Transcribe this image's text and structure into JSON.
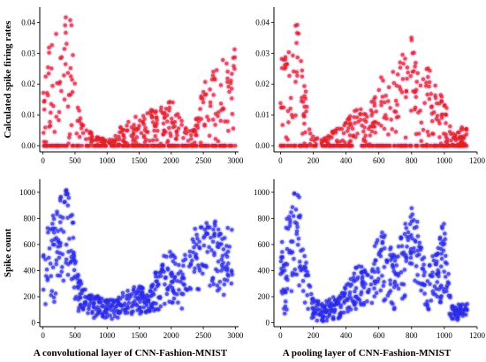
{
  "colors": {
    "red": "#e02020",
    "red_halo": "#f4b8e8",
    "blue": "#2a2ae8",
    "blue_halo": "#b9b9f5"
  },
  "chart_data": [
    {
      "type": "scatter",
      "panel": "top-left",
      "xlabel": "",
      "ylabel": "Calculated spike firing rates",
      "xlim": [
        -50,
        3050
      ],
      "ylim": [
        -0.002,
        0.045
      ],
      "xticks": [
        "0",
        "500",
        "1000",
        "1500",
        "2000",
        "2500",
        "3000"
      ],
      "yticks": [
        "0.00",
        "0.01",
        "0.02",
        "0.03",
        "0.04"
      ],
      "series_color": "red",
      "envelope_x": [
        0,
        100,
        200,
        300,
        400,
        450,
        500,
        600,
        800,
        1000,
        1100,
        1200,
        1400,
        1600,
        1800,
        2000,
        2150,
        2300,
        2400,
        2500,
        2600,
        2700,
        2750,
        2800,
        2900,
        3000
      ],
      "envelope_y": [
        0.03,
        0.034,
        0.038,
        0.041,
        0.044,
        0.04,
        0.02,
        0.008,
        0.003,
        0.002,
        0.002,
        0.006,
        0.009,
        0.012,
        0.013,
        0.016,
        0.01,
        0.004,
        0.01,
        0.02,
        0.025,
        0.028,
        0.027,
        0.03,
        0.025,
        0.033
      ]
    },
    {
      "type": "scatter",
      "panel": "top-right",
      "xlabel": "",
      "ylabel": "",
      "xlim": [
        -40,
        1200
      ],
      "ylim": [
        -0.002,
        0.045
      ],
      "xticks": [
        "0",
        "200",
        "400",
        "600",
        "800",
        "1000",
        "1200"
      ],
      "yticks": [
        "0.00",
        "0.01",
        "0.02",
        "0.03",
        "0.04"
      ],
      "series_color": "red",
      "envelope_x": [
        0,
        50,
        100,
        130,
        180,
        250,
        300,
        400,
        480,
        530,
        600,
        680,
        750,
        800,
        850,
        900,
        950,
        1000,
        1050,
        1100,
        1140
      ],
      "envelope_y": [
        0.028,
        0.033,
        0.042,
        0.03,
        0.005,
        0.002,
        0.004,
        0.008,
        0.013,
        0.01,
        0.022,
        0.025,
        0.03,
        0.04,
        0.02,
        0.026,
        0.02,
        0.016,
        0.004,
        0.006,
        0.007
      ]
    },
    {
      "type": "scatter",
      "panel": "bottom-left",
      "xlabel": "A convolutional layer of CNN-Fashion-MNIST",
      "ylabel": "Spike count",
      "xlim": [
        -50,
        3050
      ],
      "ylim": [
        -30,
        1100
      ],
      "xticks": [
        "0",
        "500",
        "1000",
        "1500",
        "2000",
        "2500",
        "3000"
      ],
      "yticks": [
        "0",
        "200",
        "400",
        "600",
        "800",
        "1000"
      ],
      "series_color": "blue",
      "envelope_x": [
        0,
        100,
        200,
        300,
        400,
        450,
        550,
        700,
        900,
        1100,
        1300,
        1500,
        1650,
        1800,
        2000,
        2150,
        2300,
        2500,
        2700,
        2800,
        2950
      ],
      "envelope_y": [
        700,
        800,
        900,
        1000,
        1080,
        900,
        350,
        220,
        200,
        180,
        250,
        300,
        200,
        480,
        560,
        420,
        700,
        760,
        780,
        700,
        800
      ],
      "envelope_low": [
        0,
        80,
        150,
        250,
        300,
        200,
        60,
        40,
        30,
        20,
        40,
        60,
        80,
        100,
        120,
        100,
        150,
        200,
        250,
        200,
        250
      ]
    },
    {
      "type": "scatter",
      "panel": "bottom-right",
      "xlabel": "A pooling layer of CNN-Fashion-MNIST",
      "ylabel": "",
      "xlim": [
        -40,
        1200
      ],
      "ylim": [
        -30,
        1100
      ],
      "xticks": [
        "0",
        "200",
        "400",
        "600",
        "800",
        "1000",
        "1200"
      ],
      "yticks": [
        "0",
        "200",
        "400",
        "600",
        "800",
        "1000"
      ],
      "series_color": "blue",
      "envelope_x": [
        0,
        40,
        80,
        110,
        150,
        200,
        250,
        300,
        380,
        430,
        480,
        530,
        600,
        650,
        700,
        760,
        800,
        850,
        900,
        950,
        1000,
        1040,
        1080,
        1140
      ],
      "envelope_y": [
        650,
        800,
        1000,
        1050,
        500,
        200,
        150,
        180,
        250,
        350,
        480,
        380,
        700,
        680,
        500,
        800,
        940,
        700,
        420,
        600,
        800,
        150,
        140,
        150
      ],
      "envelope_low": [
        0,
        100,
        250,
        300,
        100,
        20,
        0,
        10,
        40,
        80,
        120,
        80,
        150,
        120,
        80,
        200,
        300,
        200,
        80,
        100,
        150,
        20,
        20,
        30
      ]
    }
  ]
}
